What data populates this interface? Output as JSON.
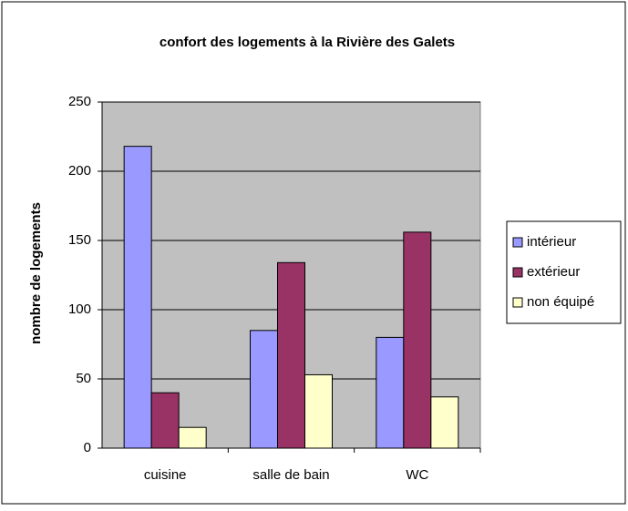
{
  "chart_data": {
    "type": "bar",
    "title": "confort des logements à la Rivière des Galets",
    "y_label": "nombre de logements",
    "categories": [
      "cuisine",
      "salle de bain",
      "WC"
    ],
    "series": [
      {
        "name": "intérieur",
        "color": "#9999ff",
        "values": [
          218,
          85,
          80
        ]
      },
      {
        "name": "extérieur",
        "color": "#993366",
        "values": [
          40,
          134,
          156
        ]
      },
      {
        "name": "non équipé",
        "color": "#ffffcc",
        "values": [
          15,
          53,
          37
        ]
      }
    ],
    "ylim": [
      0,
      250
    ],
    "yticks": [
      0,
      50,
      100,
      150,
      200,
      250
    ],
    "grid": true,
    "legend": "right"
  }
}
